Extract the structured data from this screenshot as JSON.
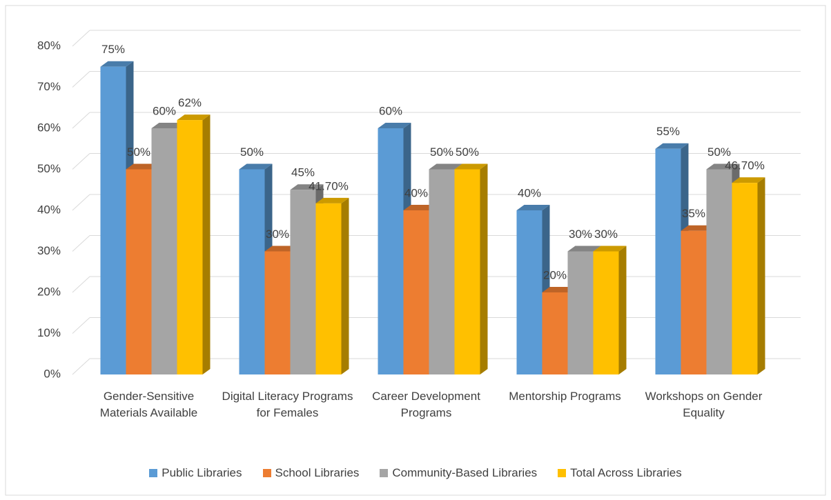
{
  "chart_data": {
    "type": "bar3d",
    "categories": [
      "Gender-Sensitive Materials Available",
      "Digital Literacy Programs for Females",
      "Career Development Programs",
      "Mentorship Programs",
      "Workshops on Gender Equality"
    ],
    "series": [
      {
        "name": "Public Libraries",
        "color": "#5b9bd5",
        "values": [
          75,
          50,
          60,
          40,
          55
        ],
        "value_labels": [
          "75%",
          "50%",
          "60%",
          "40%",
          "55%"
        ]
      },
      {
        "name": "School Libraries",
        "color": "#ed7d31",
        "values": [
          50,
          30,
          40,
          20,
          35
        ],
        "value_labels": [
          "50%",
          "30%",
          "40%",
          "20%",
          "35%"
        ]
      },
      {
        "name": "Community-Based Libraries",
        "color": "#a5a5a5",
        "values": [
          60,
          45,
          50,
          30,
          50
        ],
        "value_labels": [
          "60%",
          "45%",
          "50%",
          "30%",
          "50%"
        ]
      },
      {
        "name": "Total Across Libraries",
        "color": "#ffc000",
        "values": [
          62,
          41.7,
          50,
          30,
          46.7
        ],
        "value_labels": [
          "62%",
          "41.70%",
          "50%",
          "30%",
          "46.70%"
        ]
      }
    ],
    "ylim": [
      0,
      80
    ],
    "yticks": [
      {
        "value": 0,
        "label": "0%"
      },
      {
        "value": 10,
        "label": "10%"
      },
      {
        "value": 20,
        "label": "20%"
      },
      {
        "value": 30,
        "label": "30%"
      },
      {
        "value": 40,
        "label": "40%"
      },
      {
        "value": 50,
        "label": "50%"
      },
      {
        "value": 60,
        "label": "60%"
      },
      {
        "value": 70,
        "label": "70%"
      },
      {
        "value": 80,
        "label": "80%"
      }
    ],
    "grid": true,
    "legend": "bottom"
  }
}
